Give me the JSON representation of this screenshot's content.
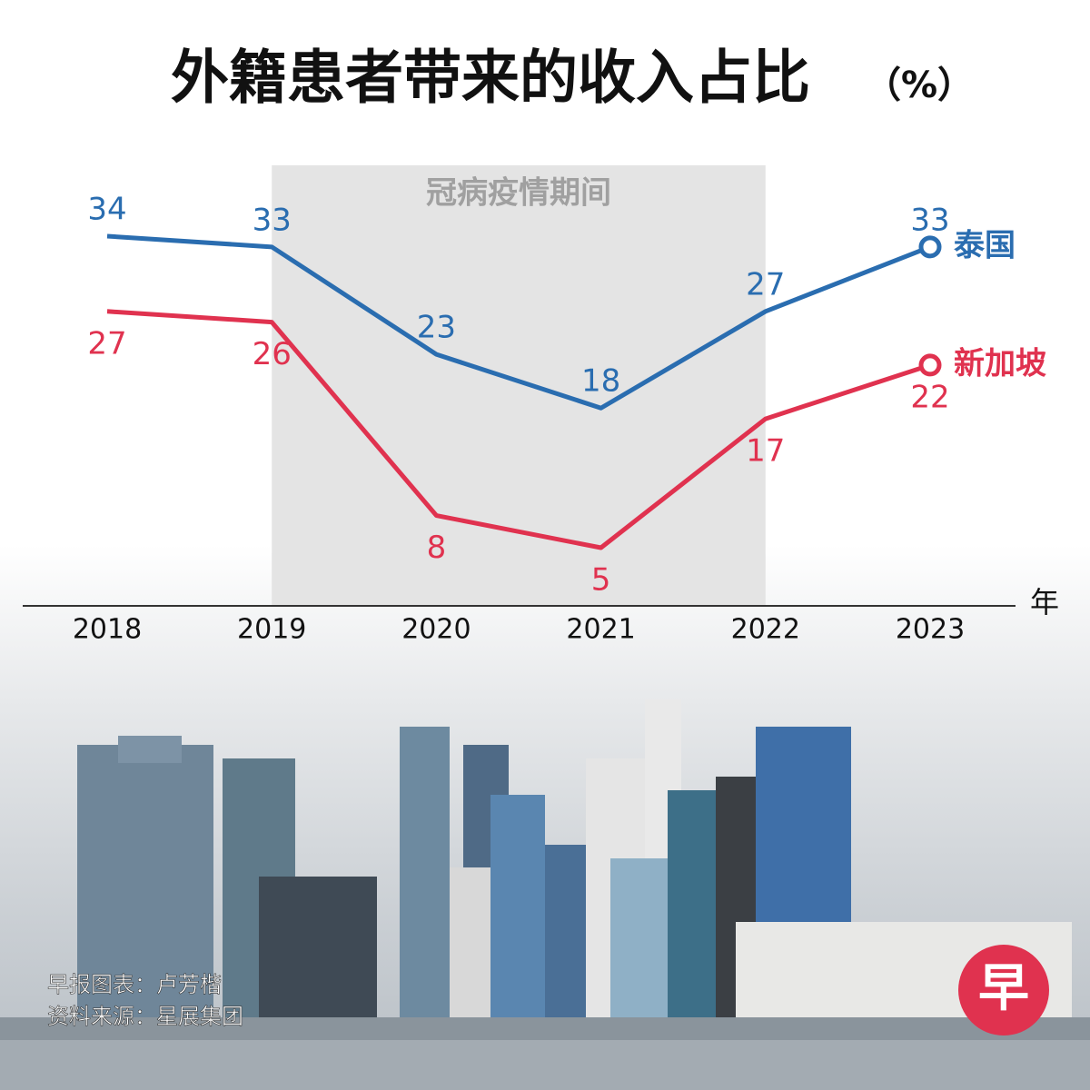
{
  "chart_data": {
    "type": "line",
    "title": "外籍患者带来的收入占比",
    "unit": "（%）",
    "x_label": "年",
    "categories": [
      "2018",
      "2019",
      "2020",
      "2021",
      "2022",
      "2023"
    ],
    "series": [
      {
        "name": "泰国",
        "color": "#2a6db0",
        "values": [
          34,
          33,
          23,
          18,
          27,
          33
        ]
      },
      {
        "name": "新加坡",
        "color": "#e0324f",
        "values": [
          27,
          26,
          8,
          5,
          17,
          22
        ]
      }
    ],
    "shaded_period": {
      "text": "冠病疫情期间",
      "from": "2019",
      "to": "2022"
    }
  },
  "footer": {
    "credit": "早报图表：卢芳楷",
    "source": "资料来源：星展集团",
    "logo": "早"
  }
}
